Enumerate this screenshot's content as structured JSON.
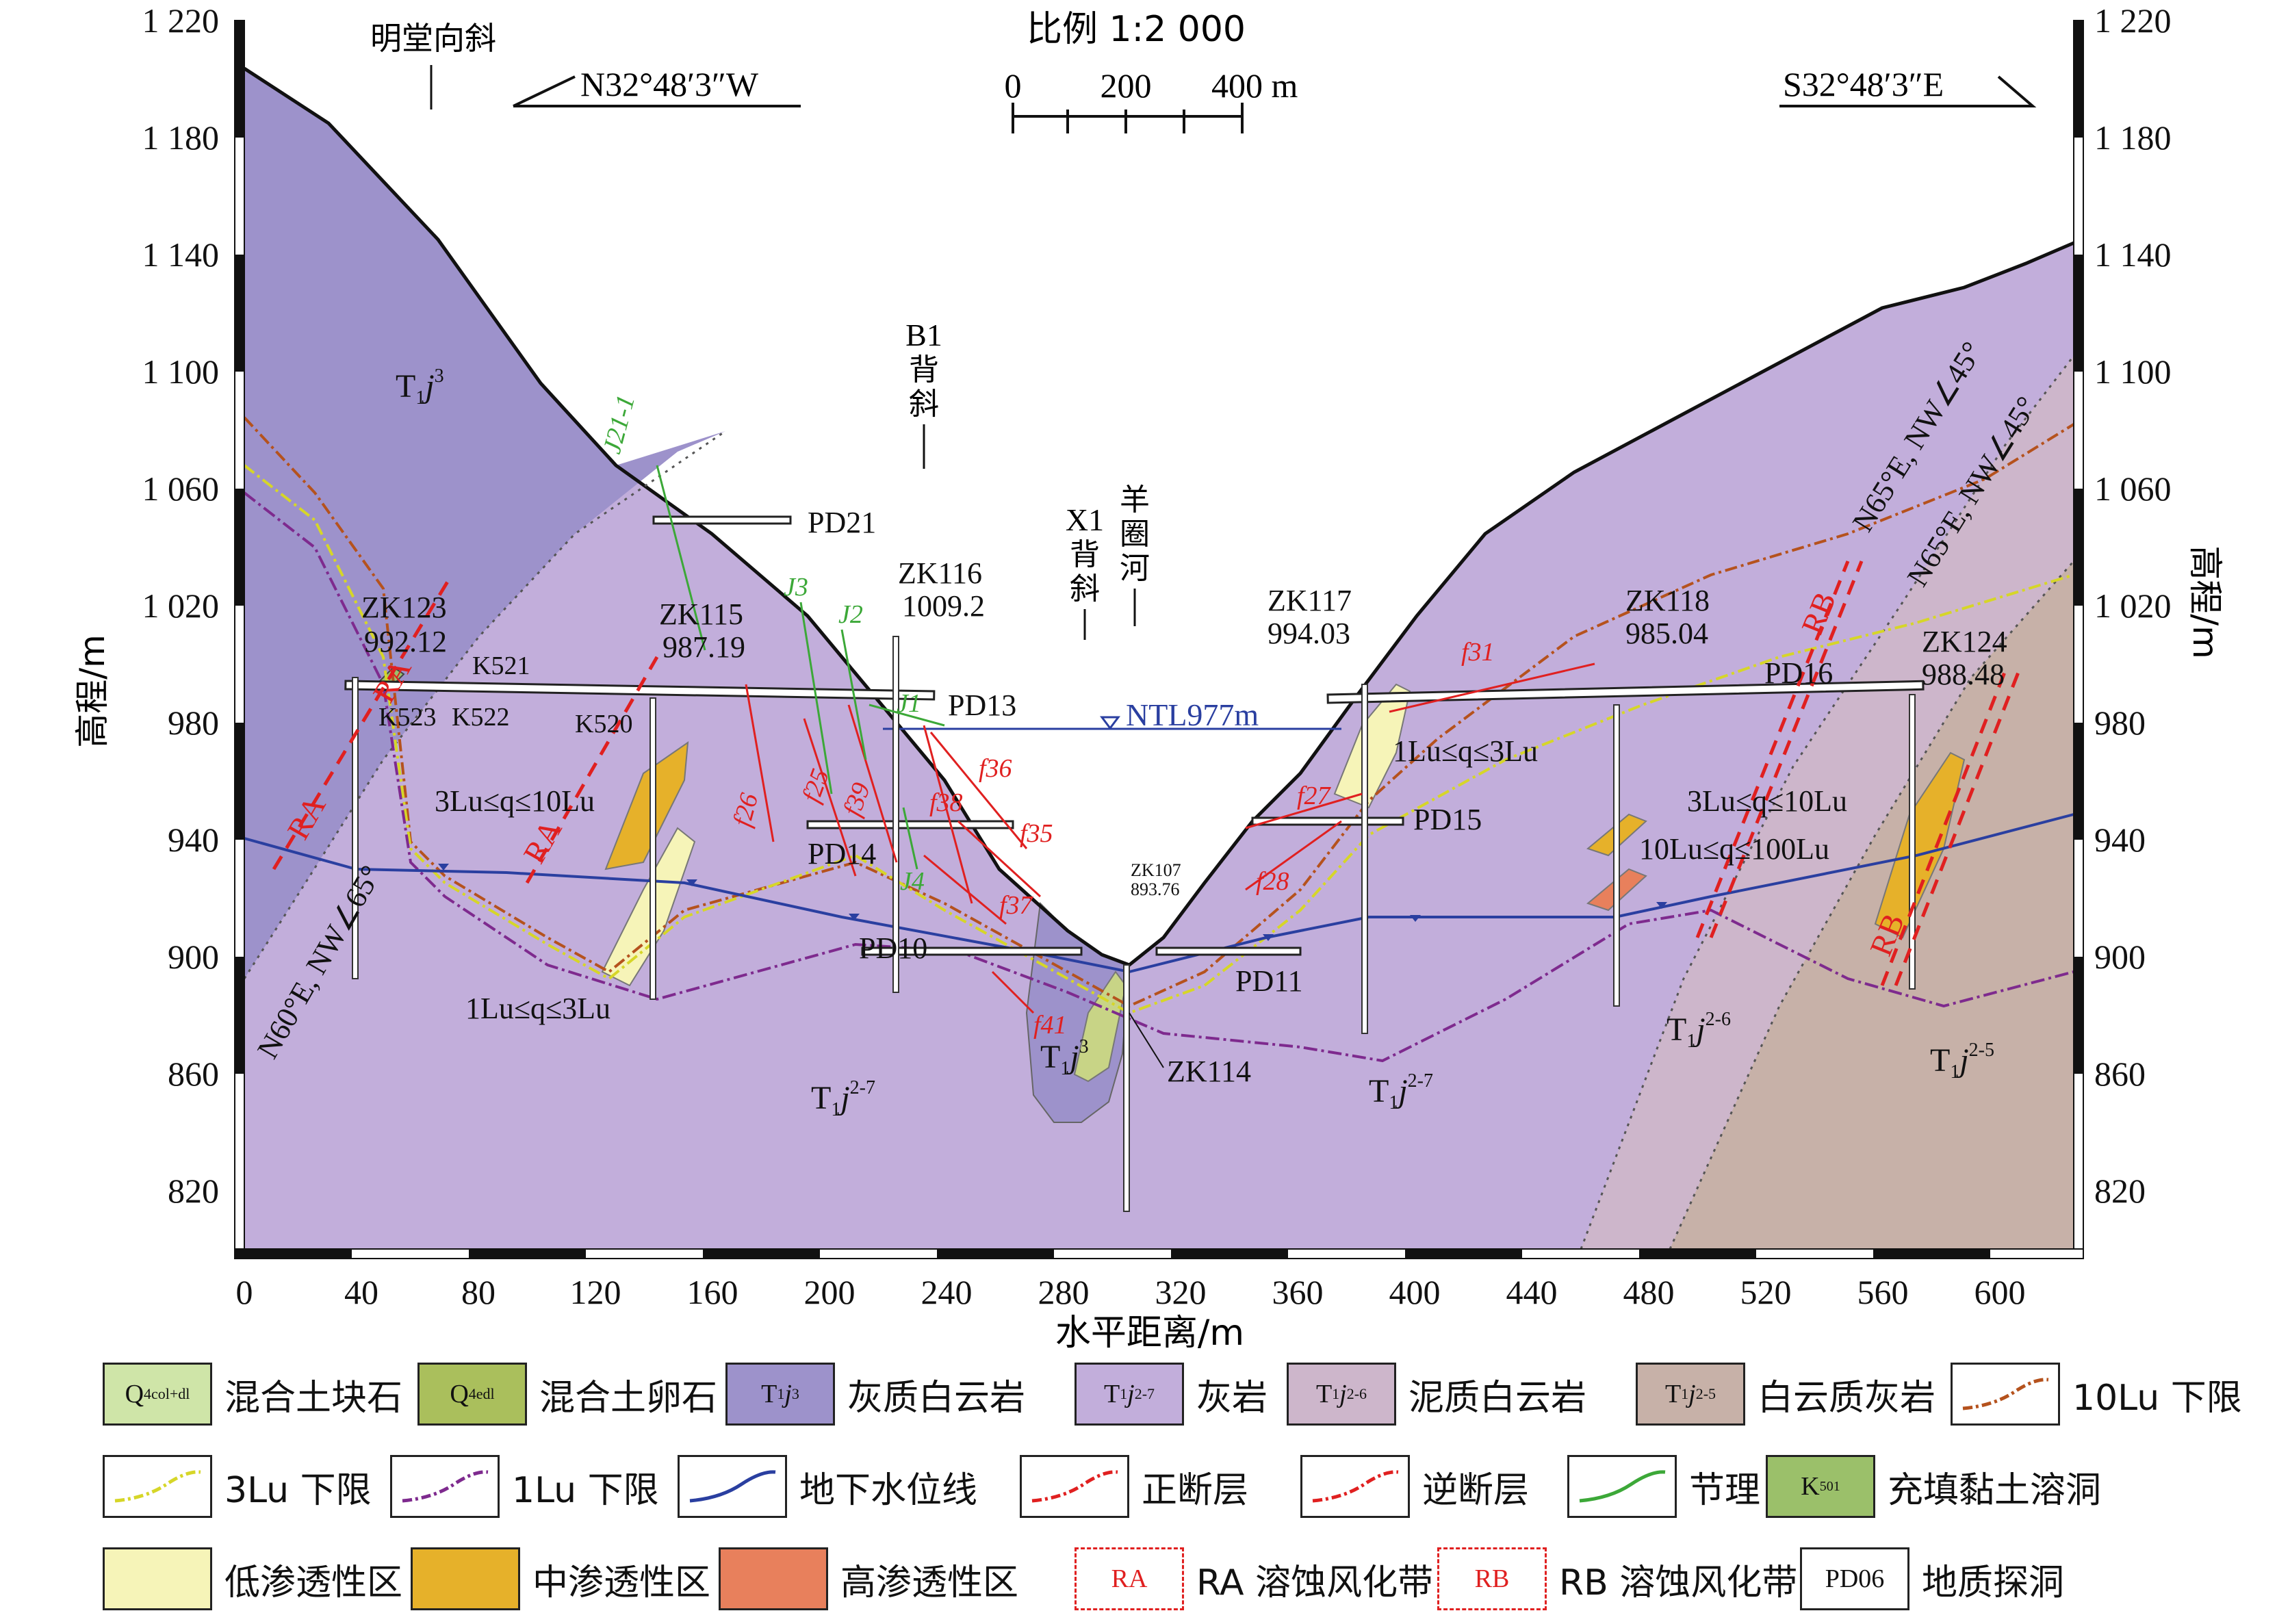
{
  "scale": {
    "label": "比例 1:2 000",
    "ticks": [
      "0",
      "200",
      "400 m"
    ]
  },
  "orientation": {
    "left": "N32°48′3″W",
    "right": "S32°48′3″E"
  },
  "y_axis": {
    "label": "高程/m",
    "ticks": [
      "1 220",
      "1 180",
      "1 140",
      "1 100",
      "1 060",
      "1 020",
      "980",
      "940",
      "900",
      "860",
      "820"
    ]
  },
  "x_axis": {
    "label": "水平距离/m",
    "ticks": [
      "0",
      "40",
      "80",
      "120",
      "160",
      "200",
      "240",
      "280",
      "320",
      "360",
      "400",
      "440",
      "480",
      "520",
      "560",
      "600"
    ]
  },
  "structures": {
    "syncline_mt": "明堂向斜",
    "b1": "B1",
    "b1_sub": "背",
    "b1_sub2": "斜",
    "x1": "X1",
    "x1_sub": "背",
    "x1_sub2": "斜",
    "river": "羊",
    "river_2": "圈",
    "river_3": "河"
  },
  "water_level": "NTL977m",
  "boreholes": [
    {
      "name": "ZK123",
      "elev": "992.12"
    },
    {
      "name": "ZK115",
      "elev": "987.19"
    },
    {
      "name": "ZK116",
      "elev": "1009.2"
    },
    {
      "name": "ZK117",
      "elev": "994.03"
    },
    {
      "name": "ZK118",
      "elev": "985.04"
    },
    {
      "name": "ZK124",
      "elev": "988.48"
    },
    {
      "name": "ZK107",
      "elev": "893.76"
    },
    {
      "name": "ZK114",
      "elev": ""
    }
  ],
  "adits": [
    "PD21",
    "PD13",
    "PD14",
    "PD10",
    "PD11",
    "PD15",
    "PD16"
  ],
  "strata": [
    {
      "main": "T",
      "sub": "1",
      "it": "j",
      "sup": "3"
    },
    {
      "main": "T",
      "sub": "1",
      "it": "j",
      "sup": "2-7"
    },
    {
      "main": "T",
      "sub": "1",
      "it": "j",
      "sup": "2-6"
    },
    {
      "main": "T",
      "sub": "1",
      "it": "j",
      "sup": "2-5"
    }
  ],
  "perm_labels": [
    "3Lu≤q≤10Lu",
    "1Lu≤q≤3Lu",
    "1Lu≤q≤3Lu",
    "3Lu≤q≤10Lu",
    "10Lu≤q≤100Lu"
  ],
  "orientations": [
    "N60°E, NW∠65°",
    "N65°E, NW∠45°",
    "N65°E, NW∠45°"
  ],
  "zones": [
    "RA",
    "RA",
    "RA",
    "RB",
    "RB"
  ],
  "faults": [
    "f26",
    "f25",
    "f39",
    "f38",
    "f36",
    "f35",
    "f37",
    "f41",
    "f27",
    "f28",
    "f31"
  ],
  "joints": [
    "J21-1",
    "J3",
    "J2",
    "J1",
    "J4"
  ],
  "karst": [
    "K521",
    "K523",
    "K522",
    "K520"
  ],
  "legend": [
    {
      "sym_main": "Q",
      "sym_sub": "4",
      "sym_sup": "col+dl",
      "label": "混合土块石",
      "color": "#cfe5a8"
    },
    {
      "sym_main": "Q",
      "sym_sub": "4",
      "sym_sup": "edl",
      "label": "混合土卵石",
      "color": "#aabf5c"
    },
    {
      "sym_main": "T",
      "sym_sub": "1",
      "sym_it": "j",
      "sym_sup": "3",
      "label": "灰质白云岩",
      "color": "#9d92cb"
    },
    {
      "sym_main": "T",
      "sym_sub": "1",
      "sym_it": "j",
      "sym_sup": "2-7",
      "label": "灰岩",
      "color": "#c2aedb"
    },
    {
      "sym_main": "T",
      "sym_sub": "1",
      "sym_it": "j",
      "sym_sup": "2-6",
      "label": "泥质白云岩",
      "color": "#cdb6cb"
    },
    {
      "sym_main": "T",
      "sym_sub": "1",
      "sym_it": "j",
      "sym_sup": "2-5",
      "label": "白云质灰岩",
      "color": "#c7b1a8"
    },
    {
      "label": "10Lu 下限",
      "line_color": "#b5521d"
    },
    {
      "label": "3Lu 下限",
      "line_color": "#d6d628"
    },
    {
      "label": "1Lu 下限",
      "line_color": "#7e2a8e"
    },
    {
      "label": "地下水位线",
      "line_color": "#2a3fa0"
    },
    {
      "label": "正断层",
      "line_color": "#e02020"
    },
    {
      "label": "逆断层",
      "line_color": "#e02020"
    },
    {
      "label": "节理",
      "line_color": "#3ca838"
    },
    {
      "label": "充填黏土溶洞",
      "sym_text": "K",
      "sym_sub": "501",
      "color": "#9bc06a"
    },
    {
      "label": "低渗透性区",
      "color": "#f6f4b8"
    },
    {
      "label": "中渗透性区",
      "color": "#e6b12a"
    },
    {
      "label": "高渗透性区",
      "color": "#e8805c"
    },
    {
      "label": "RA 溶蚀风化带",
      "sym_text": "RA"
    },
    {
      "label": "RB 溶蚀风化带",
      "sym_text": "RB"
    },
    {
      "label": "地质探洞",
      "sym_text": "PD06"
    }
  ]
}
